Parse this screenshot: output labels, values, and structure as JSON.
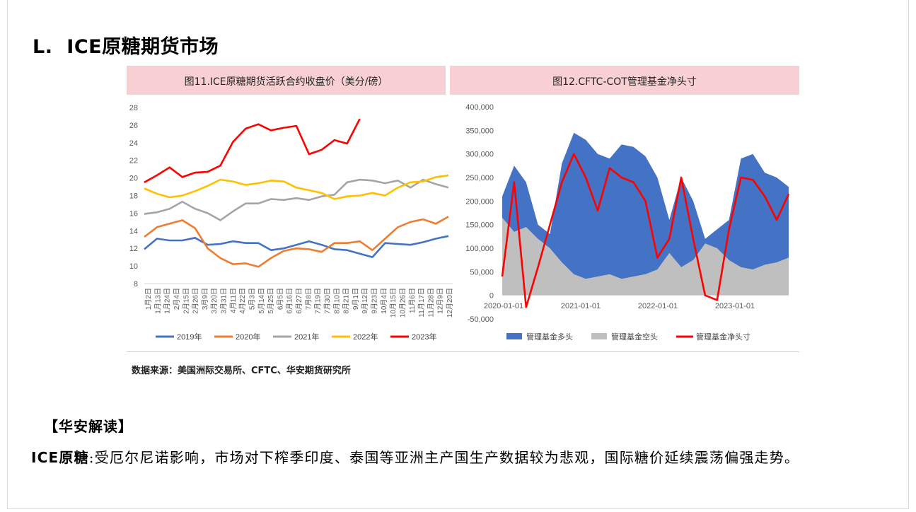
{
  "section": {
    "marker": "L.",
    "title": "ICE原糖期货市场"
  },
  "charts": {
    "left_title": "图11.ICE原糖期货活跃合约收盘价（美分/磅）",
    "right_title": "图12.CFTC-COT管理基金净头寸"
  },
  "source": "数据来源：美国洲际交易所、CFTC、华安期货研究所",
  "interpretation": {
    "title": "【华安解读】",
    "lead": "ICE原糖",
    "colon": ":",
    "body": "受厄尔尼诺影响，市场对下榨季印度、泰国等亚洲主产国生产数据较为悲观，国际糖价延续震荡偏强走势。"
  },
  "chart_data": [
    {
      "type": "line",
      "title": "图11.ICE原糖期货活跃合约收盘价（美分/磅）",
      "ylim": [
        8,
        28
      ],
      "yticks": [
        8,
        10,
        12,
        14,
        16,
        18,
        20,
        22,
        24,
        26,
        28
      ],
      "xlim": [
        0,
        365
      ],
      "categories": [
        "1月2日",
        "1月13日",
        "1月24日",
        "2月4日",
        "2月15日",
        "2月26日",
        "3月9日",
        "3月20日",
        "3月31日",
        "4月11日",
        "4月22日",
        "5月3日",
        "5月14日",
        "5月25日",
        "6月5日",
        "6月16日",
        "6月27日",
        "7月8日",
        "7月19日",
        "7月30日",
        "8月10日",
        "8月21日",
        "9月1日",
        "9月12日",
        "9月23日",
        "10月4日",
        "10月15日",
        "10月26日",
        "11月6日",
        "11月17日",
        "11月28日",
        "12月9日",
        "12月20日"
      ],
      "series": [
        {
          "name": "2019年",
          "color": "#4472c4",
          "x": [
            0,
            15,
            30,
            45,
            60,
            75,
            90,
            105,
            120,
            135,
            150,
            165,
            180,
            195,
            210,
            225,
            240,
            255,
            270,
            285,
            300,
            315,
            330,
            345,
            360
          ],
          "values": [
            11.9,
            13.1,
            12.9,
            12.9,
            13.2,
            12.4,
            12.5,
            12.8,
            12.6,
            12.6,
            11.8,
            12.0,
            12.4,
            12.8,
            12.4,
            11.9,
            11.8,
            11.4,
            11.0,
            12.6,
            12.5,
            12.4,
            12.7,
            13.1,
            13.4
          ]
        },
        {
          "name": "2020年",
          "color": "#ed7d31",
          "x": [
            0,
            15,
            30,
            45,
            60,
            75,
            90,
            105,
            120,
            135,
            150,
            165,
            180,
            195,
            210,
            225,
            240,
            255,
            270,
            285,
            300,
            315,
            330,
            345,
            360
          ],
          "values": [
            13.3,
            14.4,
            14.8,
            15.2,
            14.3,
            12.0,
            10.9,
            10.2,
            10.3,
            9.9,
            10.9,
            11.7,
            12.0,
            11.9,
            11.6,
            12.6,
            12.6,
            12.8,
            11.8,
            13.1,
            14.4,
            15.0,
            15.3,
            14.8,
            15.6
          ]
        },
        {
          "name": "2021年",
          "color": "#a5a5a5",
          "x": [
            0,
            15,
            30,
            45,
            60,
            75,
            90,
            105,
            120,
            135,
            150,
            165,
            180,
            195,
            210,
            225,
            240,
            255,
            270,
            285,
            300,
            315,
            330,
            345,
            360
          ],
          "values": [
            15.9,
            16.1,
            16.5,
            17.3,
            16.5,
            16.0,
            15.2,
            16.2,
            17.1,
            17.1,
            17.6,
            17.5,
            17.7,
            17.5,
            17.9,
            18.1,
            19.5,
            19.8,
            19.7,
            19.4,
            19.7,
            18.9,
            19.8,
            19.3,
            18.9
          ]
        },
        {
          "name": "2022年",
          "color": "#ffc000",
          "x": [
            0,
            15,
            30,
            45,
            60,
            75,
            90,
            105,
            120,
            135,
            150,
            165,
            180,
            195,
            210,
            225,
            240,
            255,
            270,
            285,
            300,
            315,
            330,
            345,
            360
          ],
          "values": [
            18.8,
            18.2,
            17.8,
            18.0,
            18.5,
            19.1,
            19.8,
            19.6,
            19.2,
            19.4,
            19.7,
            19.6,
            18.9,
            18.6,
            18.3,
            17.6,
            17.9,
            18.0,
            18.3,
            18.0,
            18.9,
            19.5,
            19.6,
            20.1,
            20.3
          ]
        },
        {
          "name": "2023年",
          "color": "#ff0000",
          "x": [
            0,
            15,
            30,
            45,
            60,
            75,
            90,
            105,
            120,
            135,
            150,
            165,
            180,
            195,
            210,
            225,
            240,
            255
          ],
          "values": [
            19.5,
            20.3,
            21.2,
            20.1,
            20.6,
            20.7,
            21.4,
            24.1,
            25.6,
            26.1,
            25.4,
            25.7,
            25.9,
            22.7,
            23.2,
            24.3,
            23.9,
            26.7
          ]
        }
      ]
    },
    {
      "type": "area",
      "title": "图12.CFTC-COT管理基金净头寸",
      "ylim": [
        -50000,
        400000
      ],
      "yticks": [
        -50000,
        0,
        50000,
        100000,
        150000,
        200000,
        250000,
        300000,
        350000,
        400000
      ],
      "ytick_labels": [
        "-50,000",
        "0",
        "50,000",
        "100,000",
        "150,000",
        "200,000",
        "250,000",
        "300,000",
        "350,000",
        "400,000"
      ],
      "xticks": [
        "2020-01-01",
        "2021-01-01",
        "2022-01-01",
        "2023-01-01"
      ],
      "series": [
        {
          "name": "管理基金多头",
          "color": "#4472c4",
          "kind": "area",
          "x": [
            0,
            2,
            4,
            6,
            8,
            10,
            12,
            14,
            16,
            18,
            20,
            22,
            24,
            26,
            28,
            30,
            32,
            34,
            36,
            38,
            40,
            42,
            44,
            46,
            48
          ],
          "values": [
            210000,
            275000,
            240000,
            150000,
            130000,
            280000,
            345000,
            330000,
            300000,
            290000,
            320000,
            315000,
            295000,
            250000,
            160000,
            250000,
            200000,
            120000,
            140000,
            160000,
            290000,
            300000,
            260000,
            250000,
            230000
          ]
        },
        {
          "name": "管理基金空头",
          "color": "#bfbfbf",
          "kind": "area",
          "x": [
            0,
            2,
            4,
            6,
            8,
            10,
            12,
            14,
            16,
            18,
            20,
            22,
            24,
            26,
            28,
            30,
            32,
            34,
            36,
            38,
            40,
            42,
            44,
            46,
            48
          ],
          "values": [
            165000,
            135000,
            145000,
            120000,
            100000,
            70000,
            45000,
            35000,
            40000,
            45000,
            35000,
            40000,
            45000,
            55000,
            90000,
            60000,
            75000,
            110000,
            100000,
            75000,
            60000,
            55000,
            65000,
            70000,
            80000
          ]
        },
        {
          "name": "管理基金净头寸",
          "color": "#ff0000",
          "kind": "line",
          "x": [
            0,
            2,
            4,
            6,
            8,
            10,
            12,
            14,
            16,
            18,
            20,
            22,
            24,
            26,
            28,
            30,
            32,
            34,
            36,
            38,
            40,
            42,
            44,
            46,
            48
          ],
          "values": [
            40000,
            240000,
            -25000,
            60000,
            150000,
            240000,
            300000,
            250000,
            180000,
            270000,
            250000,
            240000,
            200000,
            80000,
            120000,
            250000,
            120000,
            0,
            -10000,
            140000,
            250000,
            245000,
            210000,
            160000,
            215000
          ]
        }
      ]
    }
  ]
}
